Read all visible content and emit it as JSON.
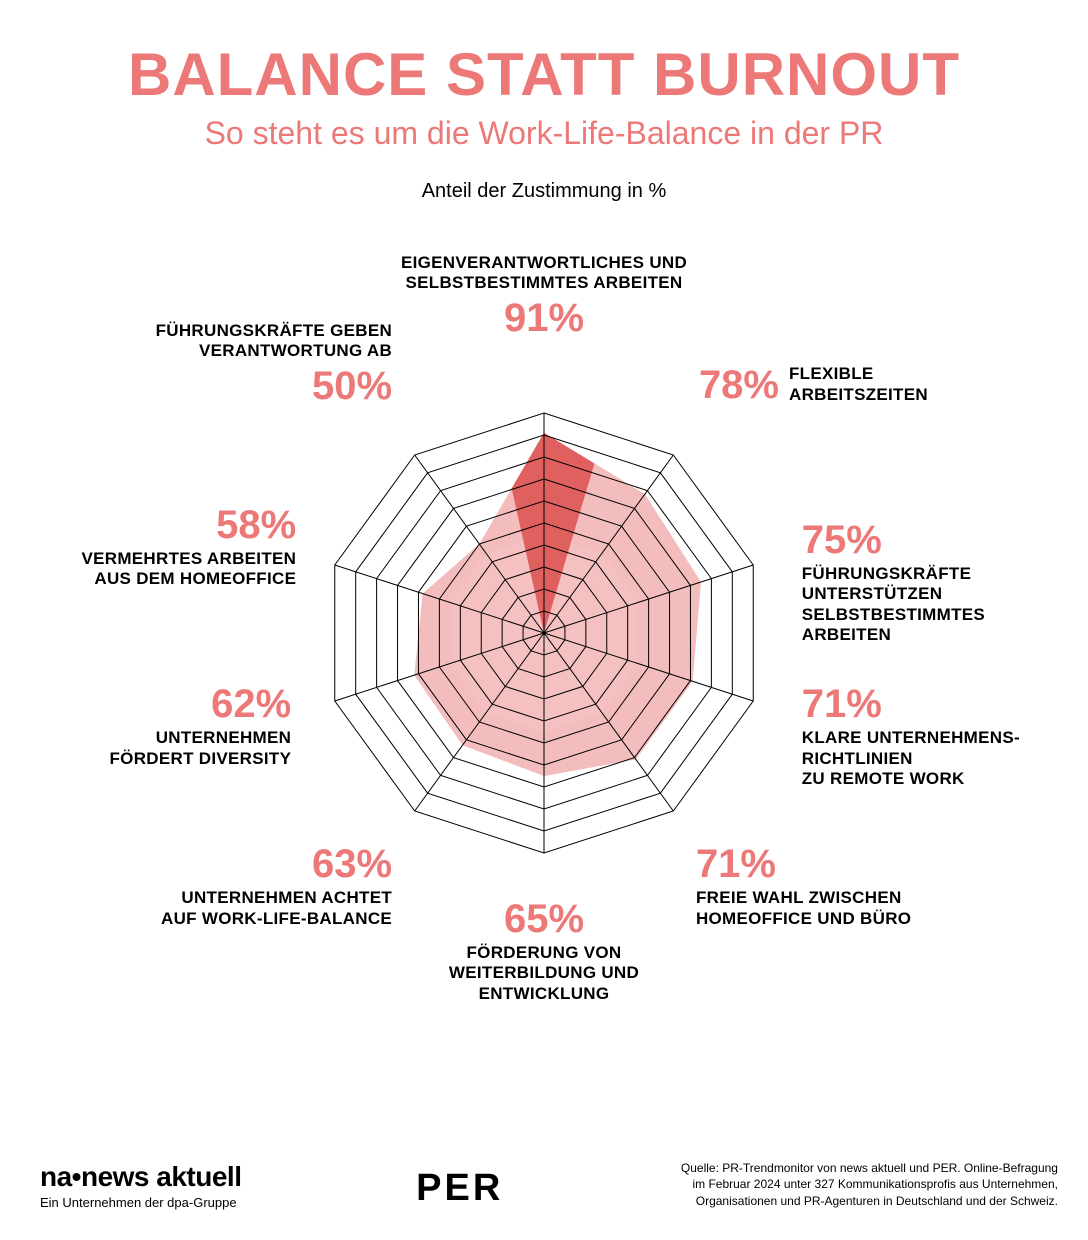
{
  "title": "BALANCE STATT BURNOUT",
  "subtitle": "So steht es um die Work-Life-Balance in der PR",
  "unit_label": "Anteil der Zustimmung in %",
  "colors": {
    "accent": "#ec7878",
    "accent_dark": "#e06060",
    "fill_light": "#f4bcbc",
    "fill_lighter": "#f9dede",
    "grid": "#000000",
    "text": "#000000",
    "bg": "#ffffff"
  },
  "radar": {
    "type": "radar",
    "num_axes": 10,
    "rings": 10,
    "max_value": 100,
    "grid_stroke_width": 1,
    "items": [
      {
        "label": "EIGENVERANTWORTLICHES UND\nSELBSTBESTIMMTES ARBEITEN",
        "value": 91,
        "highlight": true
      },
      {
        "label": "FLEXIBLE\nARBEITSZEITEN",
        "value": 78
      },
      {
        "label": "FÜHRUNGSKRÄFTE\nUNTERSTÜTZEN\nSELBSTBESTIMMTES\nARBEITEN",
        "value": 75
      },
      {
        "label": "KLARE UNTERNEHMENS-\nRICHTLINIEN\nZU REMOTE WORK",
        "value": 71
      },
      {
        "label": "FREIE WAHL ZWISCHEN\nHOMEOFFICE UND BÜRO",
        "value": 71
      },
      {
        "label": "FÖRDERUNG VON\nWEITERBILDUNG UND\nENTWICKLUNG",
        "value": 65
      },
      {
        "label": "UNTERNEHMEN ACHTET\nAUF WORK-LIFE-BALANCE",
        "value": 63
      },
      {
        "label": "UNTERNEHMEN\nFÖRDERT DIVERSITY",
        "value": 62
      },
      {
        "label": "VERMEHRTES ARBEITEN\nAUS DEM HOMEOFFICE",
        "value": 58
      },
      {
        "label": "FÜHRUNGSKRÄFTE GEBEN\nVERANTWORTUNG AB",
        "value": 50
      }
    ]
  },
  "footer": {
    "na_logo_main": "na•news aktuell",
    "na_logo_sub": "Ein Unternehmen der dpa-Gruppe",
    "per_logo": "PER",
    "credit": "Quelle: PR-Trendmonitor von news aktuell und PER. Online-Befragung im Februar 2024 unter 327 Kommunikationsprofis aus Unternehmen, Organisationen und PR-Agenturen in Deutschland und der Schweiz."
  }
}
